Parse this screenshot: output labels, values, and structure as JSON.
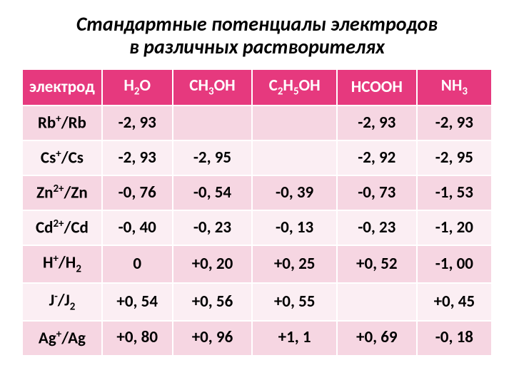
{
  "title_line1": "Стандартные потенциалы электродов",
  "title_line2": "в различных растворителях",
  "headers": [
    "электрод",
    "H2O",
    "CH3OH",
    "C2H5OH",
    "HCOOH",
    "NH3"
  ],
  "rows": [
    {
      "electrode": "Rb+/Rb",
      "h2o": "-2, 93",
      "ch3oh": "",
      "c2h5oh": "",
      "hcooh": "-2, 93",
      "nh3": "-2, 93"
    },
    {
      "electrode": "Cs+/Cs",
      "h2o": "-2, 93",
      "ch3oh": "-2, 95",
      "c2h5oh": "",
      "hcooh": "-2, 92",
      "nh3": "-2, 95"
    },
    {
      "electrode": "Zn2+/Zn",
      "h2o": "-0, 76",
      "ch3oh": "-0, 54",
      "c2h5oh": "-0, 39",
      "hcooh": "-0, 73",
      "nh3": "-1, 53"
    },
    {
      "electrode": "Cd2+/Cd",
      "h2o": "-0, 40",
      "ch3oh": "-0, 23",
      "c2h5oh": "-0, 13",
      "hcooh": "-0, 23",
      "nh3": "-1, 20"
    },
    {
      "electrode": "H+/H2",
      "h2o": "0",
      "ch3oh": "+0, 20",
      "c2h5oh": "+0, 25",
      "hcooh": "+0, 52",
      "nh3": "-1, 00"
    },
    {
      "electrode": "J-/J2",
      "h2o": "+0, 54",
      "ch3oh": "+0, 56",
      "c2h5oh": "+0, 55",
      "hcooh": "",
      "nh3": "+0, 45"
    },
    {
      "electrode": "Ag+/Ag",
      "h2o": "+0, 80",
      "ch3oh": "+0, 96",
      "c2h5oh": "+1, 1",
      "hcooh": "+0, 69",
      "nh3": "-0, 18"
    }
  ],
  "style": {
    "header_bg": "#e6397e",
    "header_fg": "#ffffff",
    "row_odd_bg": "#f6d6e2",
    "row_even_bg": "#fbeef3",
    "title_fontsize": 28,
    "cell_fontsize": 23
  }
}
